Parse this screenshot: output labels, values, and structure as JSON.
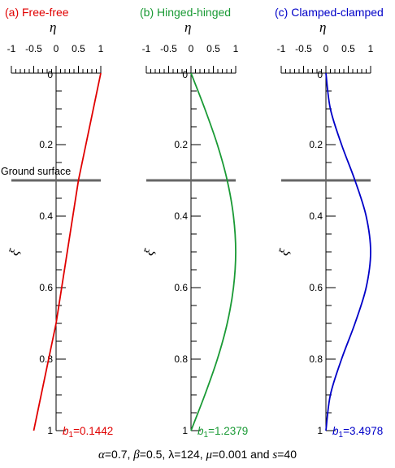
{
  "chart_data": [
    {
      "type": "line",
      "panel_title": "(a) Free-free",
      "color": "#e00000",
      "xlabel": "η",
      "ylabel": "ξ",
      "xlim": [
        -1,
        1
      ],
      "ylim": [
        0,
        1
      ],
      "xticks": [
        "-1",
        "-0.5",
        "0",
        "0.5",
        "1"
      ],
      "yticks": [
        "0",
        "0.2",
        "0.4",
        "0.6",
        "0.8",
        "1"
      ],
      "ground_surface_xi": 0.3,
      "ground_surface_label": "Ground surface",
      "b_label": "b",
      "b_sub": "1",
      "b_value": "=0.1442",
      "x": [
        1.0,
        0.5,
        0.0,
        -0.5
      ],
      "y": [
        0.0,
        0.3,
        0.7,
        1.0
      ]
    },
    {
      "type": "line",
      "panel_title": "(b) Hinged-hinged",
      "color": "#1a9a35",
      "xlabel": "η",
      "ylabel": "ξ",
      "xlim": [
        -1,
        1
      ],
      "ylim": [
        0,
        1
      ],
      "xticks": [
        "-1",
        "-0.5",
        "0",
        "0.5",
        "1"
      ],
      "yticks": [
        "0",
        "0.2",
        "0.4",
        "0.6",
        "0.8",
        "1"
      ],
      "ground_surface_xi": 0.3,
      "b_label": "b",
      "b_sub": "1",
      "b_value": "=1.2379",
      "x": [
        0.0,
        0.31,
        0.59,
        0.81,
        0.95,
        1.0,
        0.95,
        0.81,
        0.59,
        0.31,
        0.0
      ],
      "y": [
        0.0,
        0.1,
        0.2,
        0.3,
        0.4,
        0.5,
        0.6,
        0.7,
        0.8,
        0.9,
        1.0
      ]
    },
    {
      "type": "line",
      "panel_title": "(c) Clamped-clamped",
      "color": "#0000c8",
      "xlabel": "η",
      "ylabel": "ξ",
      "xlim": [
        -1,
        1
      ],
      "ylim": [
        0,
        1
      ],
      "xticks": [
        "-1",
        "-0.5",
        "0",
        "0.5",
        "1"
      ],
      "yticks": [
        "0",
        "0.2",
        "0.4",
        "0.6",
        "0.8",
        "1"
      ],
      "ground_surface_xi": 0.3,
      "b_label": "b",
      "b_sub": "1",
      "b_value": "=3.4978",
      "x": [
        0.0,
        0.1,
        0.35,
        0.65,
        0.9,
        1.0,
        0.9,
        0.65,
        0.35,
        0.1,
        0.0
      ],
      "y": [
        0.0,
        0.1,
        0.2,
        0.3,
        0.4,
        0.5,
        0.6,
        0.7,
        0.8,
        0.9,
        1.0
      ]
    }
  ],
  "footer": {
    "alpha_sym": "α",
    "alpha_val": "=0.7, ",
    "beta_sym": "β",
    "beta_val": "=0.5, λ=124, ",
    "mu_sym": "μ",
    "mu_val": "=0.001 and ",
    "s_sym": "s",
    "s_val": "=40"
  }
}
